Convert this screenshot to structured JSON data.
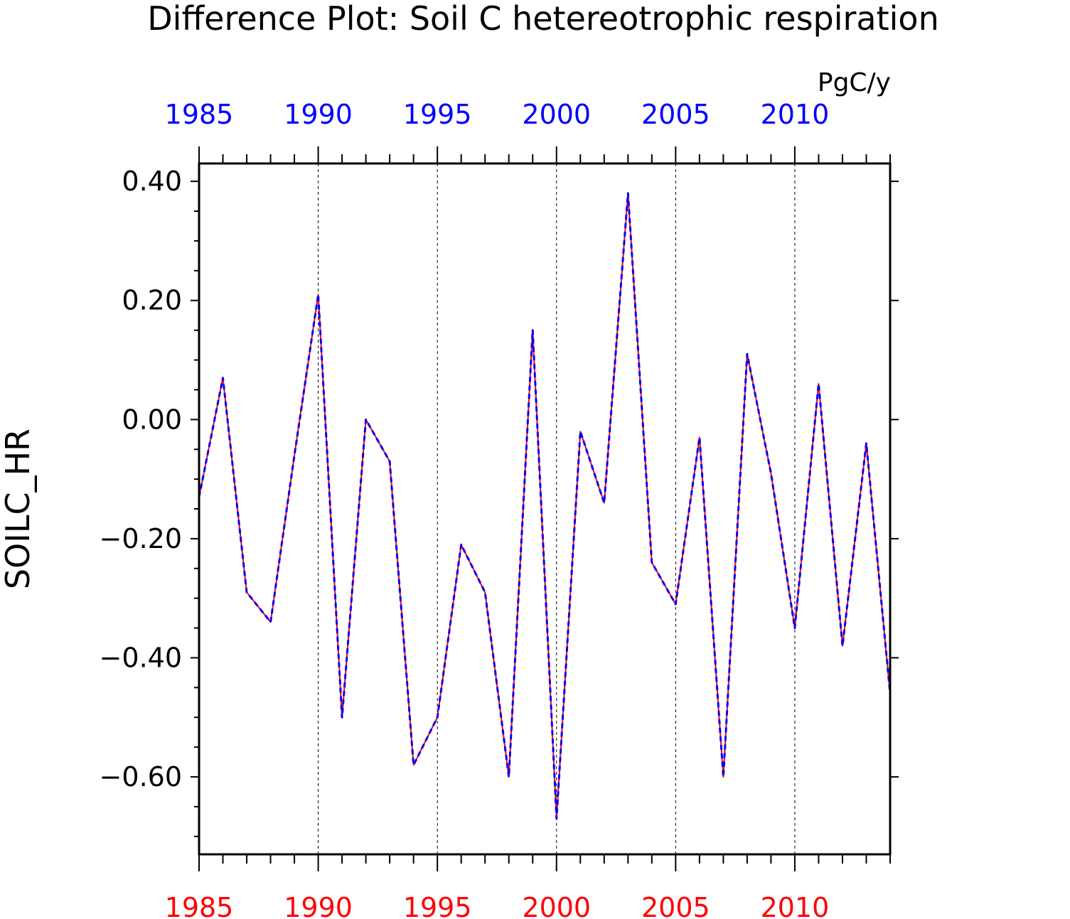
{
  "chart_data": {
    "type": "line",
    "title": "Difference Plot: Soil C hetereotrophic respiration",
    "units": "PgC/y",
    "ylabel": "SOILC_HR",
    "xlabel": "",
    "xlim": [
      1985,
      2014
    ],
    "ylim": [
      -0.73,
      0.43
    ],
    "yticks": [
      0.4,
      0.2,
      0.0,
      -0.2,
      -0.4,
      -0.6
    ],
    "ytick_labels": [
      "0.40",
      "0.20",
      "0.00",
      "−0.20",
      "−0.40",
      "−0.60"
    ],
    "xticks": [
      1985,
      1990,
      1995,
      2000,
      2005,
      2010
    ],
    "xtick_labels_top": [
      "1985",
      "1990",
      "1995",
      "2000",
      "2005",
      "2010"
    ],
    "xtick_labels_bottom": [
      "1985",
      "1990",
      "1995",
      "2000",
      "2005",
      "2010"
    ],
    "grid": "vertical dashed at major x ticks",
    "colors": {
      "series_solid": "#ff0000",
      "series_dashed": "#0000ff",
      "top_axis_labels": "#0000ff",
      "bottom_axis_labels": "#ff0000"
    },
    "x": [
      1985,
      1986,
      1987,
      1988,
      1989,
      1990,
      1991,
      1992,
      1993,
      1994,
      1995,
      1996,
      1997,
      1998,
      1999,
      2000,
      2001,
      2002,
      2003,
      2004,
      2005,
      2006,
      2007,
      2008,
      2009,
      2010,
      2011,
      2012,
      2013,
      2014
    ],
    "series": [
      {
        "style": "solid",
        "values": [
          -0.13,
          0.07,
          -0.29,
          -0.34,
          -0.06,
          0.21,
          -0.5,
          0.0,
          -0.07,
          -0.58,
          -0.5,
          -0.21,
          -0.29,
          -0.6,
          0.15,
          -0.67,
          -0.02,
          -0.14,
          0.38,
          -0.24,
          -0.31,
          -0.03,
          -0.6,
          0.11,
          -0.09,
          -0.35,
          0.06,
          -0.38,
          -0.04,
          -0.46
        ]
      },
      {
        "style": "dashed",
        "values": [
          -0.13,
          0.07,
          -0.29,
          -0.34,
          -0.06,
          0.21,
          -0.5,
          0.0,
          -0.07,
          -0.58,
          -0.5,
          -0.21,
          -0.29,
          -0.6,
          0.15,
          -0.67,
          -0.02,
          -0.14,
          0.38,
          -0.24,
          -0.31,
          -0.03,
          -0.6,
          0.11,
          -0.09,
          -0.35,
          0.06,
          -0.38,
          -0.04,
          -0.46
        ]
      }
    ]
  }
}
